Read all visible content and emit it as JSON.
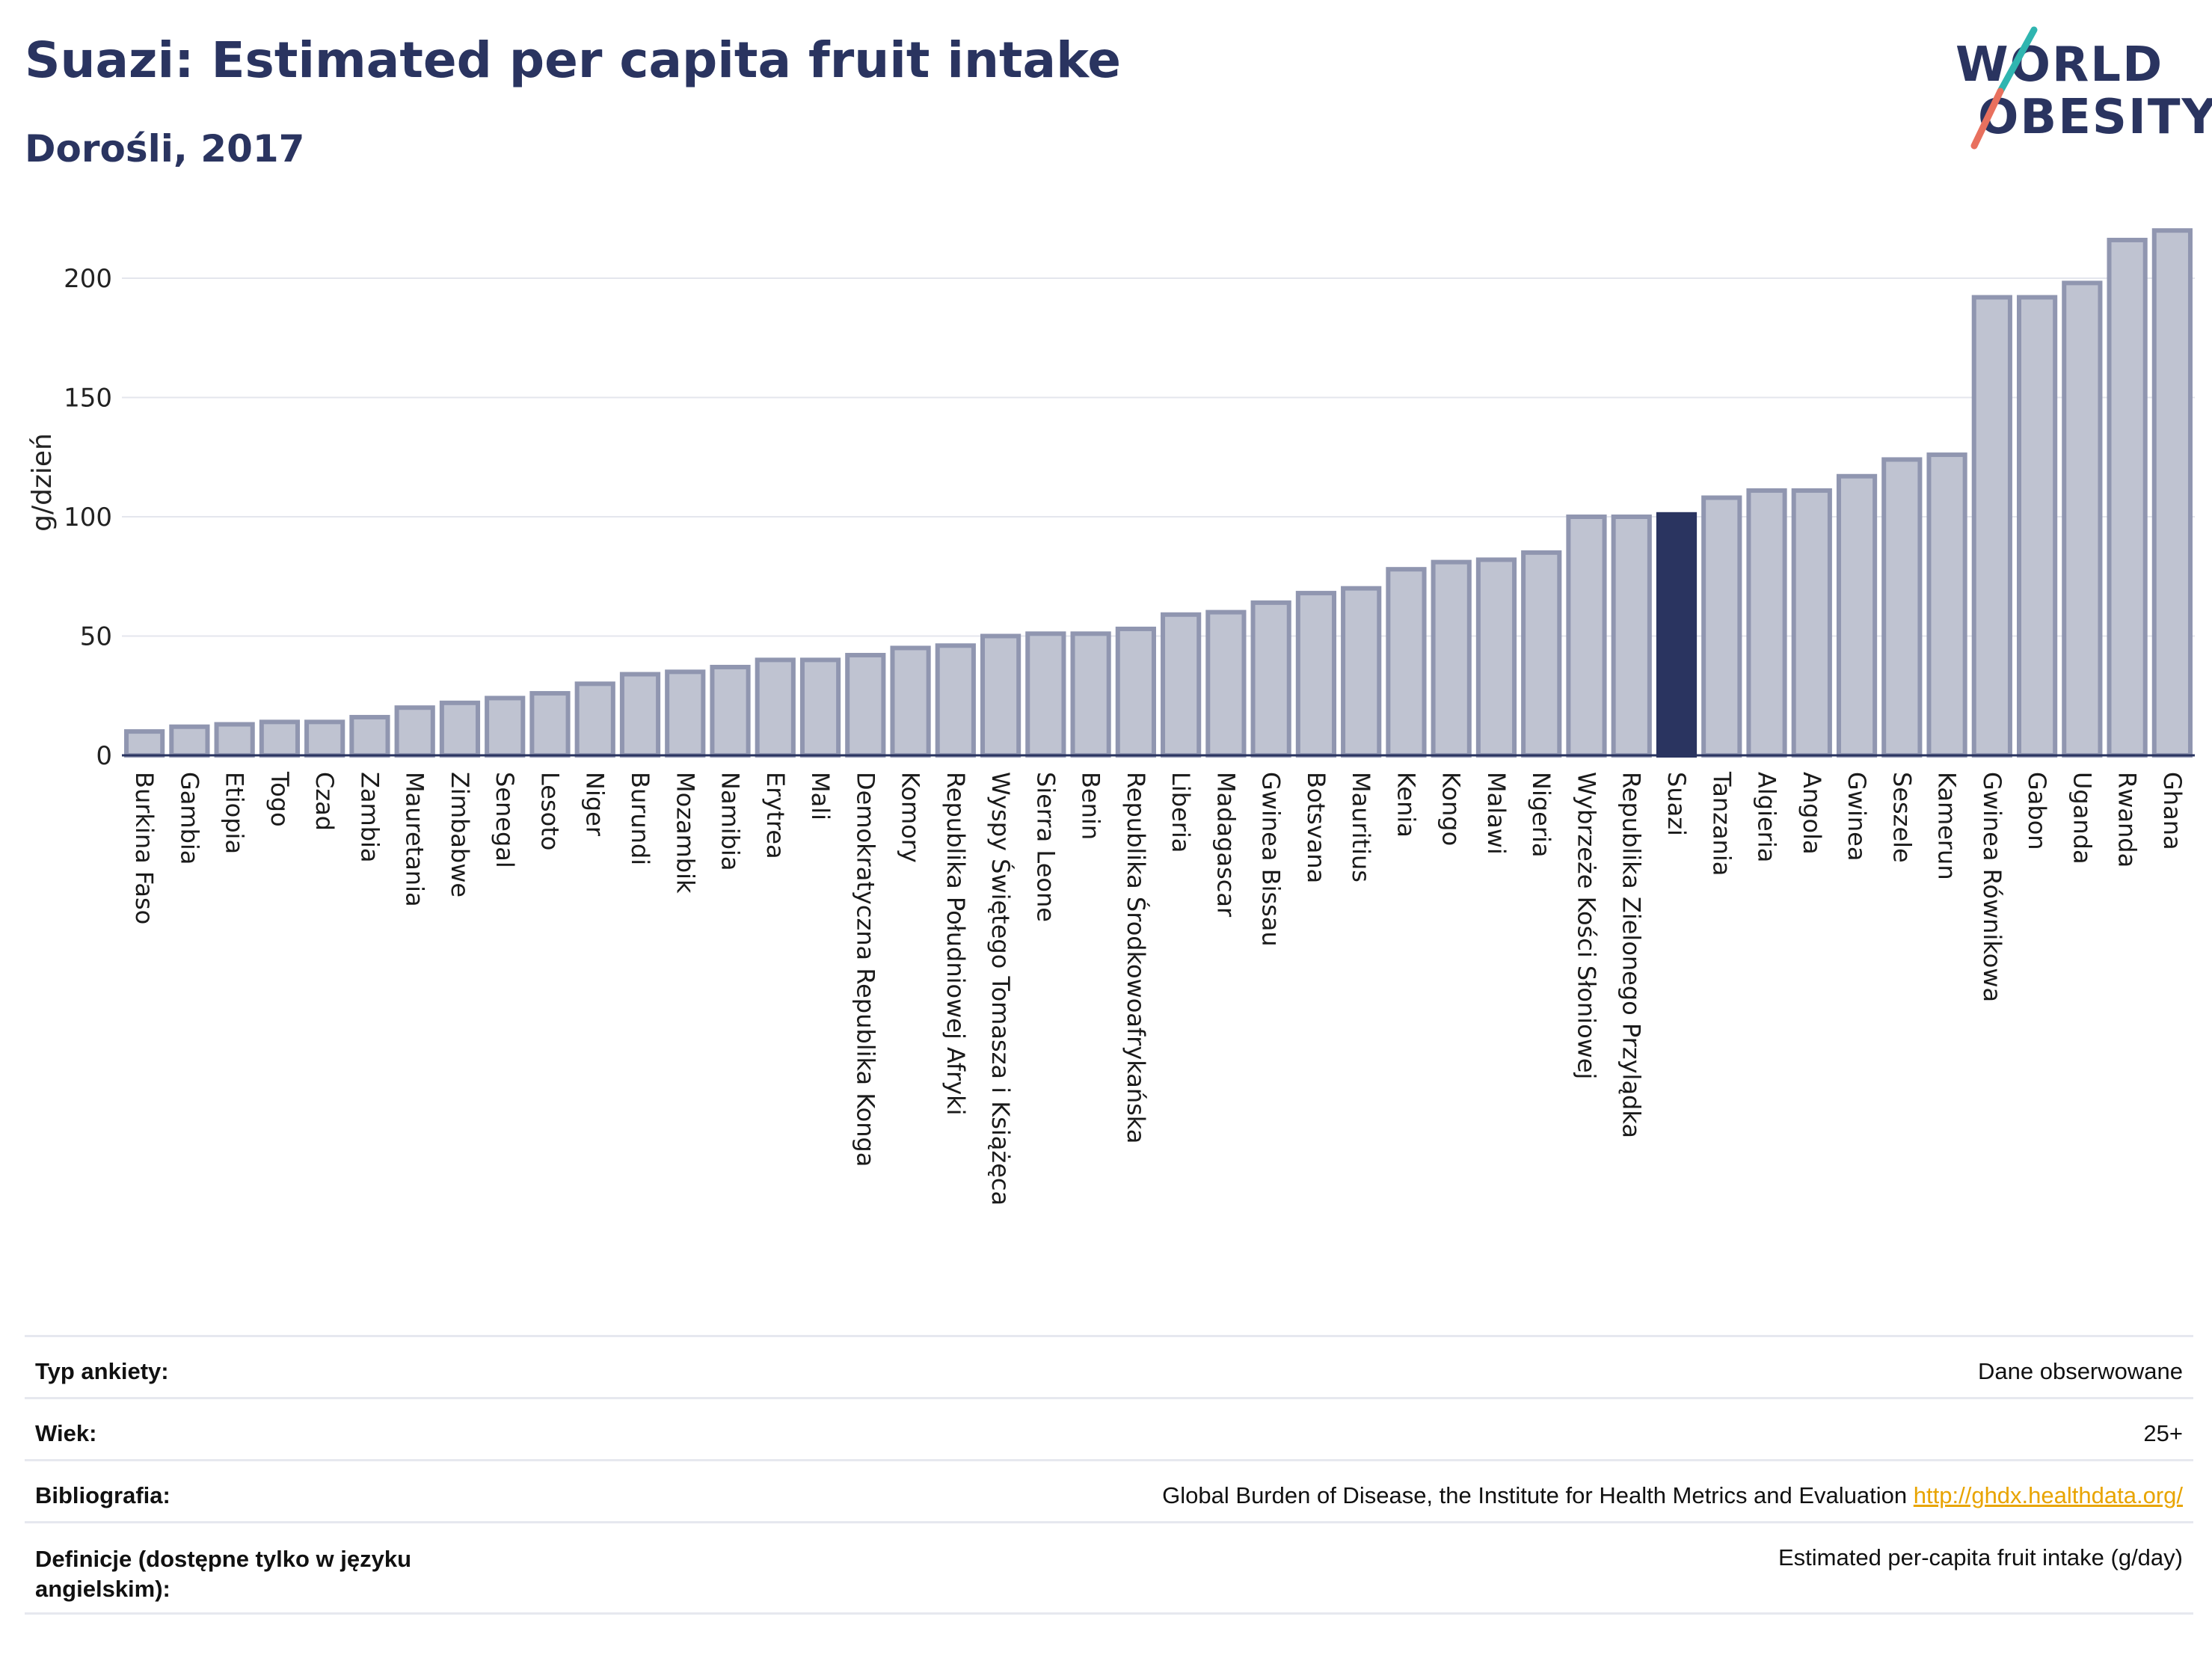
{
  "header": {
    "title": "Suazi: Estimated per capita fruit intake",
    "subtitle": "Dorośli, 2017"
  },
  "logo": {
    "line1": "WORLD",
    "line2": "OBESITY"
  },
  "chart_data": {
    "type": "bar",
    "ylabel": "g/dzień",
    "xlabel": "",
    "ylim": [
      0,
      225
    ],
    "yticks": [
      0,
      50,
      100,
      150,
      200
    ],
    "grid": true,
    "highlight": "Suazi",
    "colors": {
      "bar": "#bfc3d1",
      "bar_edge": "#9096b0",
      "highlight": "#2a3460",
      "grid": "#e4e6ed",
      "axis": "#2a3460"
    },
    "categories": [
      "Burkina Faso",
      "Gambia",
      "Etiopia",
      "Togo",
      "Czad",
      "Zambia",
      "Mauretania",
      "Zimbabwe",
      "Senegal",
      "Lesoto",
      "Niger",
      "Burundi",
      "Mozambik",
      "Namibia",
      "Erytrea",
      "Mali",
      "Demokratyczna Republika Konga",
      "Komory",
      "Republika Południowej Afryki",
      "Wyspy Świętego Tomasza i Książęca",
      "Sierra Leone",
      "Benin",
      "Republika Środkowoafrykańska",
      "Liberia",
      "Madagascar",
      "Gwinea Bissau",
      "Botsvana",
      "Mauritius",
      "Kenia",
      "Kongo",
      "Malawi",
      "Nigeria",
      "Wybrzeże Kości Słoniowej",
      "Republika Zielonego Przylądka",
      "Suazi",
      "Tanzania",
      "Algieria",
      "Angola",
      "Gwinea",
      "Seszele",
      "Kamerun",
      "Gwinea Równikowa",
      "Gabon",
      "Uganda",
      "Rwanda",
      "Ghana"
    ],
    "values": [
      10,
      12,
      13,
      14,
      14,
      16,
      20,
      22,
      24,
      26,
      30,
      34,
      35,
      37,
      40,
      40,
      42,
      45,
      46,
      50,
      51,
      51,
      53,
      59,
      60,
      64,
      68,
      70,
      78,
      81,
      82,
      85,
      100,
      100,
      101,
      108,
      111,
      111,
      117,
      124,
      126,
      192,
      192,
      198,
      216,
      220
    ]
  },
  "meta": {
    "rows": [
      {
        "key": "Typ ankiety:",
        "value": "Dane obserwowane"
      },
      {
        "key": "Wiek:",
        "value": "25+"
      },
      {
        "key": "Bibliografia:",
        "value": "Global Burden of Disease, the Institute for Health Metrics and Evaluation",
        "link": "http://ghdx.healthdata.org/"
      },
      {
        "key": "Definicje (dostępne tylko w języku angielskim):",
        "value": "Estimated per-capita fruit intake (g/day)"
      }
    ]
  }
}
